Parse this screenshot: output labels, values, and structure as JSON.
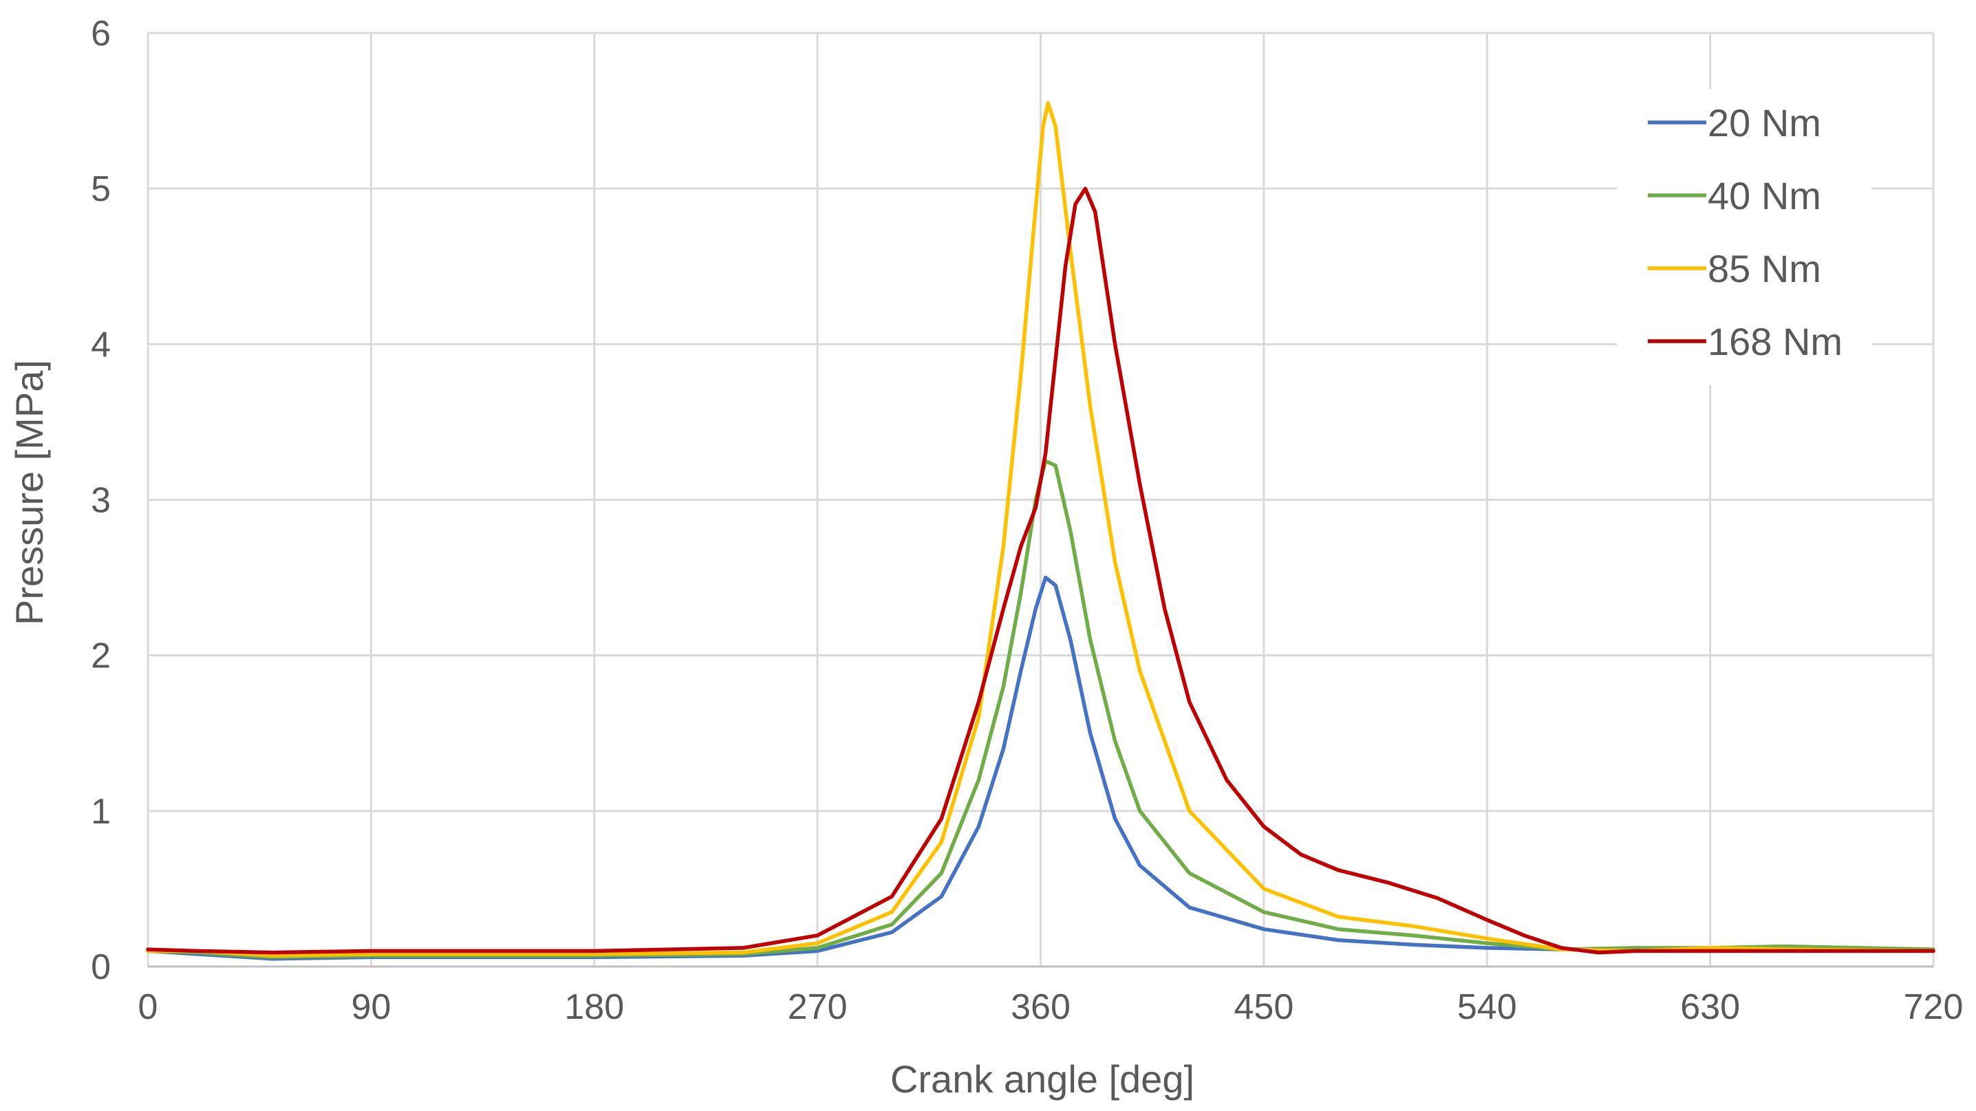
{
  "chart_data": {
    "type": "line",
    "title": "",
    "xlabel": "Crank angle [deg]",
    "ylabel": "Pressure [MPa]",
    "xlim": [
      0,
      720
    ],
    "ylim": [
      0,
      6
    ],
    "xticks": [
      0,
      90,
      180,
      270,
      360,
      450,
      540,
      630,
      720
    ],
    "yticks": [
      0,
      1,
      2,
      3,
      4,
      5,
      6
    ],
    "grid": true,
    "legend": "top-right",
    "series": [
      {
        "name": "20 Nm",
        "color": "#4472c4",
        "points": [
          [
            0,
            0.1
          ],
          [
            20,
            0.08
          ],
          [
            50,
            0.05
          ],
          [
            90,
            0.06
          ],
          [
            180,
            0.06
          ],
          [
            240,
            0.07
          ],
          [
            270,
            0.1
          ],
          [
            300,
            0.22
          ],
          [
            320,
            0.45
          ],
          [
            335,
            0.9
          ],
          [
            345,
            1.4
          ],
          [
            352,
            1.9
          ],
          [
            358,
            2.3
          ],
          [
            362,
            2.5
          ],
          [
            366,
            2.45
          ],
          [
            372,
            2.1
          ],
          [
            380,
            1.5
          ],
          [
            390,
            0.95
          ],
          [
            400,
            0.65
          ],
          [
            420,
            0.38
          ],
          [
            450,
            0.24
          ],
          [
            480,
            0.17
          ],
          [
            510,
            0.14
          ],
          [
            540,
            0.12
          ],
          [
            570,
            0.11
          ],
          [
            600,
            0.11
          ],
          [
            630,
            0.11
          ],
          [
            660,
            0.11
          ],
          [
            720,
            0.1
          ]
        ]
      },
      {
        "name": "40 Nm",
        "color": "#70ad47",
        "points": [
          [
            0,
            0.1
          ],
          [
            20,
            0.09
          ],
          [
            50,
            0.06
          ],
          [
            90,
            0.07
          ],
          [
            180,
            0.07
          ],
          [
            240,
            0.08
          ],
          [
            270,
            0.12
          ],
          [
            300,
            0.27
          ],
          [
            320,
            0.6
          ],
          [
            335,
            1.2
          ],
          [
            345,
            1.8
          ],
          [
            352,
            2.4
          ],
          [
            358,
            3.0
          ],
          [
            362,
            3.25
          ],
          [
            366,
            3.22
          ],
          [
            372,
            2.8
          ],
          [
            380,
            2.1
          ],
          [
            390,
            1.45
          ],
          [
            400,
            1.0
          ],
          [
            420,
            0.6
          ],
          [
            450,
            0.35
          ],
          [
            480,
            0.24
          ],
          [
            510,
            0.2
          ],
          [
            540,
            0.15
          ],
          [
            570,
            0.11
          ],
          [
            600,
            0.12
          ],
          [
            630,
            0.12
          ],
          [
            660,
            0.13
          ],
          [
            720,
            0.11
          ]
        ]
      },
      {
        "name": "85 Nm",
        "color": "#ffc000",
        "points": [
          [
            0,
            0.1
          ],
          [
            20,
            0.1
          ],
          [
            50,
            0.07
          ],
          [
            90,
            0.08
          ],
          [
            180,
            0.08
          ],
          [
            240,
            0.09
          ],
          [
            270,
            0.15
          ],
          [
            300,
            0.35
          ],
          [
            320,
            0.8
          ],
          [
            335,
            1.6
          ],
          [
            345,
            2.7
          ],
          [
            352,
            3.8
          ],
          [
            357,
            4.7
          ],
          [
            361,
            5.4
          ],
          [
            363,
            5.55
          ],
          [
            366,
            5.4
          ],
          [
            372,
            4.6
          ],
          [
            380,
            3.6
          ],
          [
            390,
            2.6
          ],
          [
            400,
            1.9
          ],
          [
            420,
            1.0
          ],
          [
            450,
            0.5
          ],
          [
            480,
            0.32
          ],
          [
            510,
            0.26
          ],
          [
            540,
            0.18
          ],
          [
            570,
            0.11
          ],
          [
            600,
            0.1
          ],
          [
            630,
            0.12
          ],
          [
            660,
            0.11
          ],
          [
            720,
            0.1
          ]
        ]
      },
      {
        "name": "168 Nm",
        "color": "#c00000",
        "points": [
          [
            0,
            0.11
          ],
          [
            20,
            0.1
          ],
          [
            50,
            0.09
          ],
          [
            90,
            0.1
          ],
          [
            180,
            0.1
          ],
          [
            240,
            0.12
          ],
          [
            270,
            0.2
          ],
          [
            300,
            0.45
          ],
          [
            320,
            0.95
          ],
          [
            335,
            1.7
          ],
          [
            345,
            2.3
          ],
          [
            352,
            2.7
          ],
          [
            358,
            2.95
          ],
          [
            362,
            3.3
          ],
          [
            366,
            3.9
          ],
          [
            370,
            4.5
          ],
          [
            374,
            4.9
          ],
          [
            378,
            5.0
          ],
          [
            382,
            4.85
          ],
          [
            390,
            4.0
          ],
          [
            400,
            3.1
          ],
          [
            410,
            2.3
          ],
          [
            420,
            1.7
          ],
          [
            435,
            1.2
          ],
          [
            450,
            0.9
          ],
          [
            465,
            0.72
          ],
          [
            480,
            0.62
          ],
          [
            500,
            0.54
          ],
          [
            520,
            0.44
          ],
          [
            540,
            0.3
          ],
          [
            555,
            0.2
          ],
          [
            570,
            0.12
          ],
          [
            585,
            0.09
          ],
          [
            600,
            0.1
          ],
          [
            630,
            0.1
          ],
          [
            660,
            0.1
          ],
          [
            690,
            0.1
          ],
          [
            720,
            0.1
          ]
        ]
      }
    ]
  }
}
